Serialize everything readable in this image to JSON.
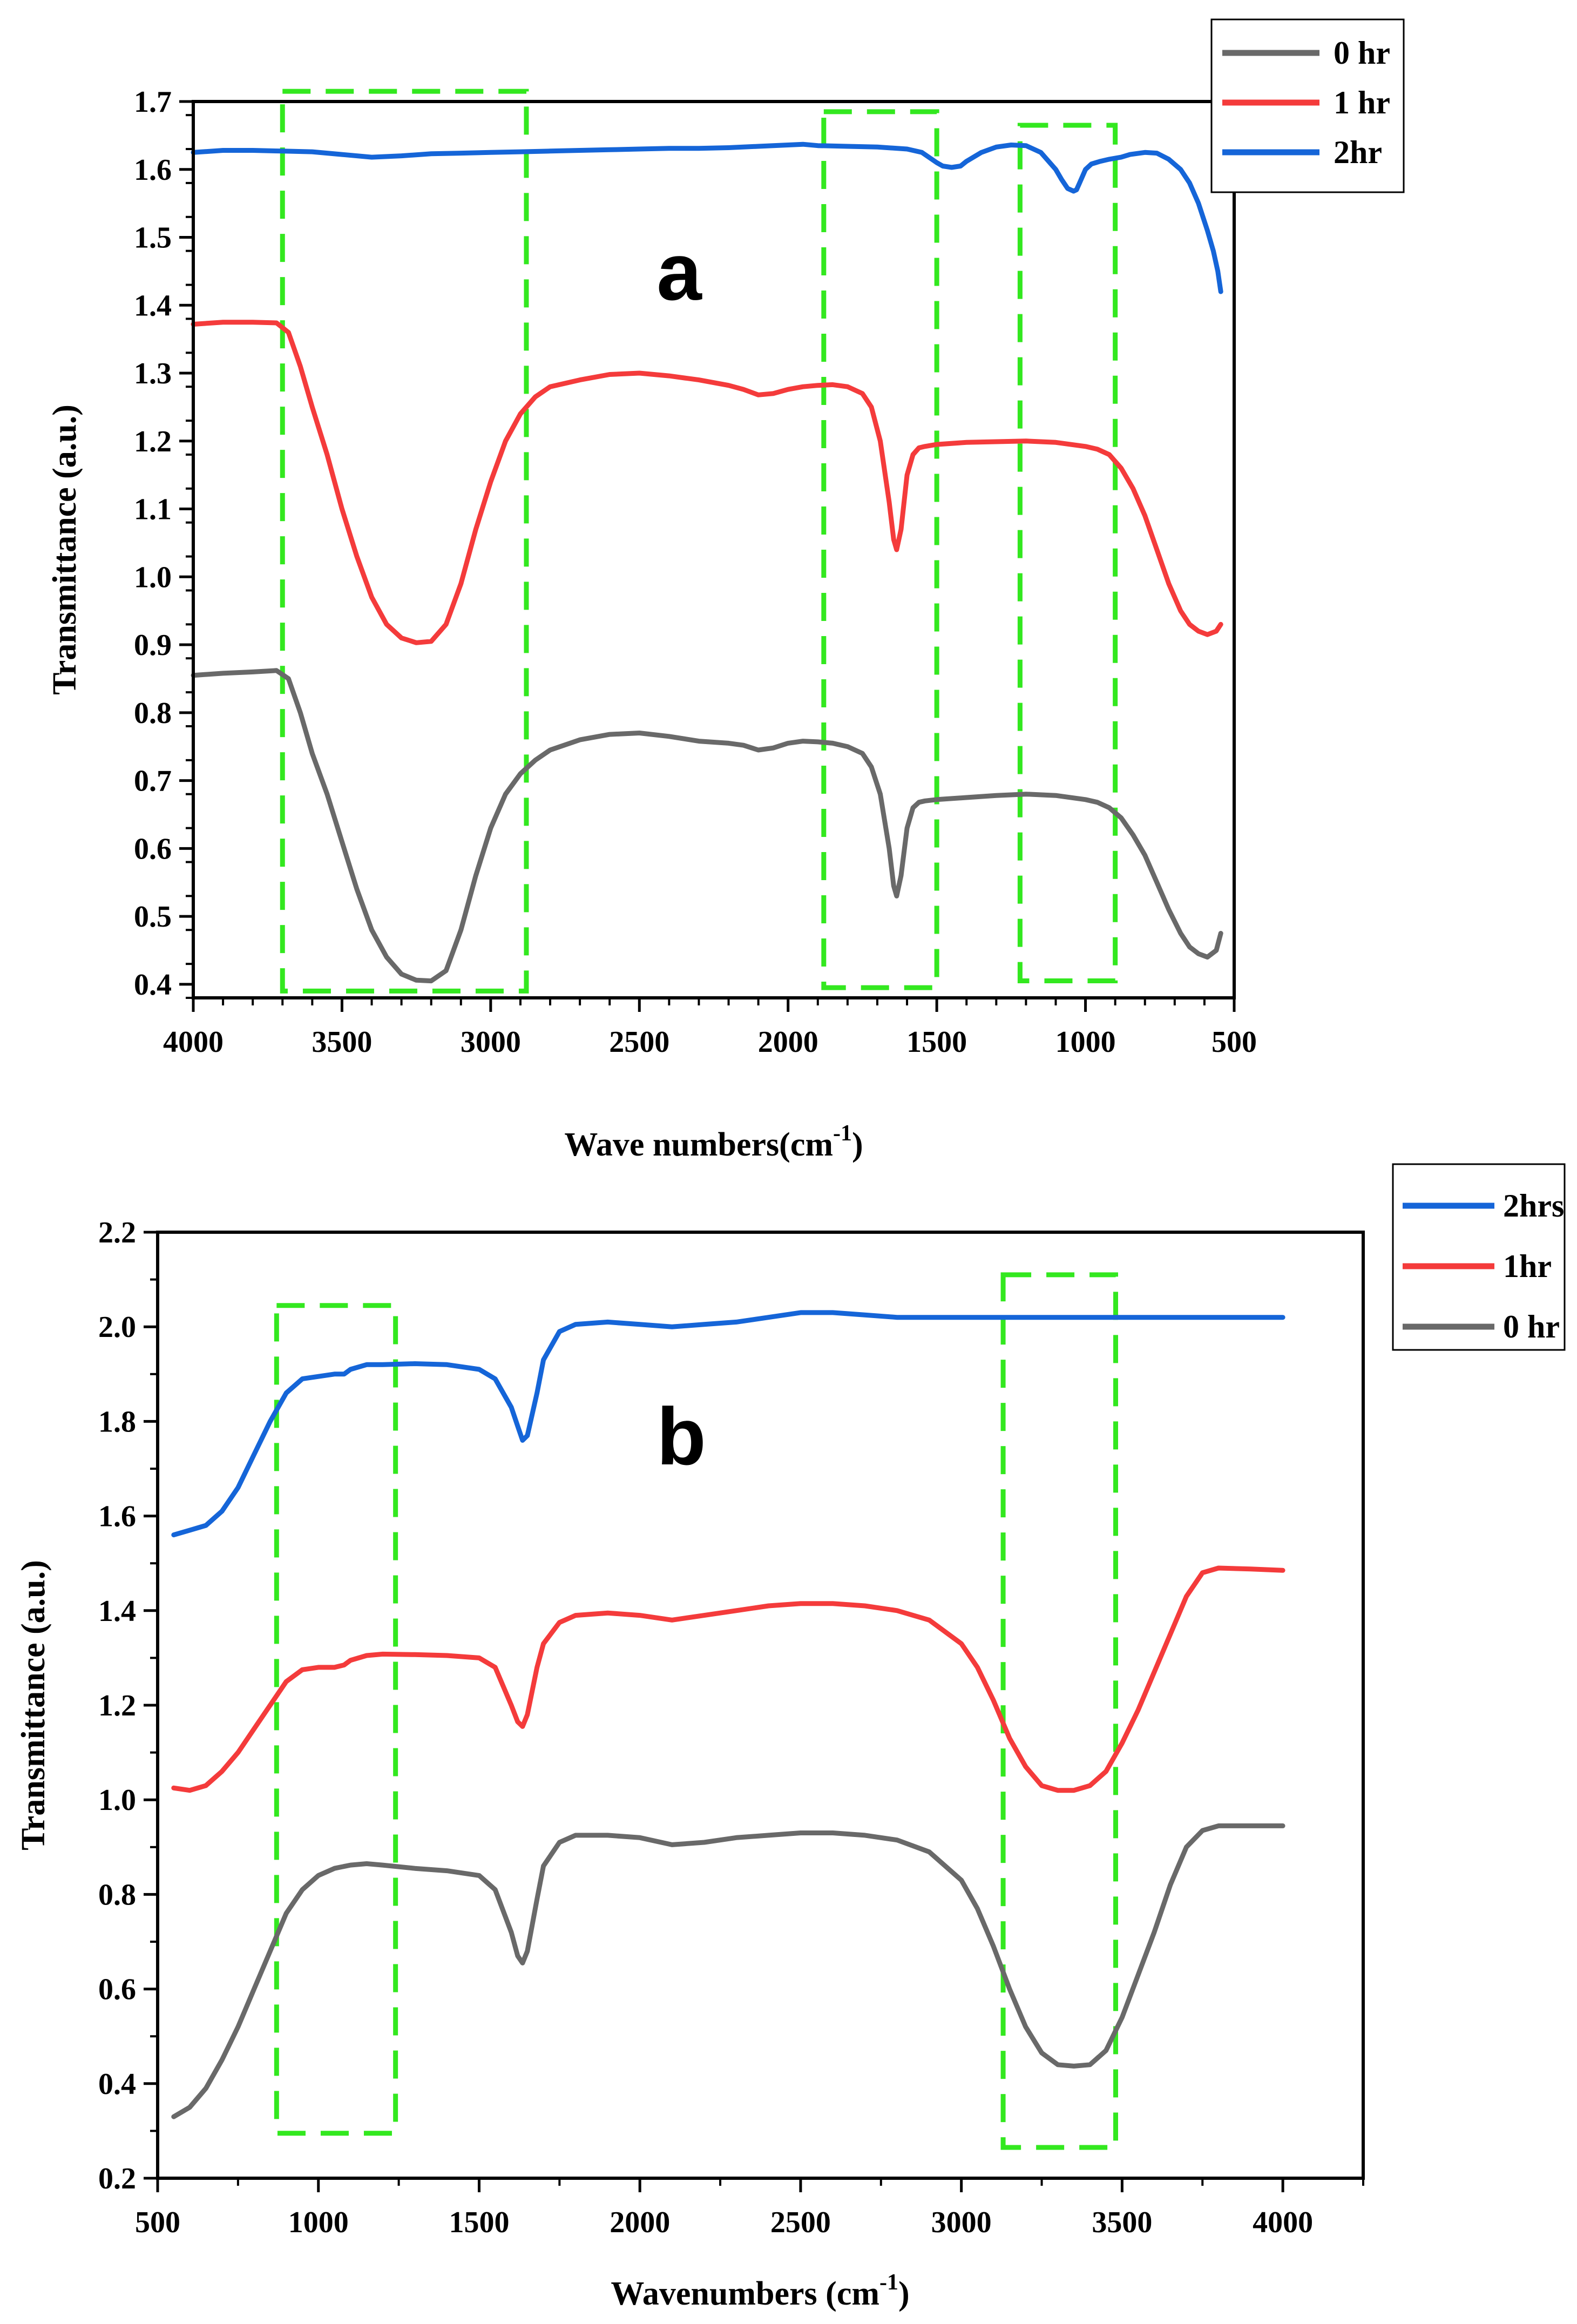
{
  "figure": {
    "panels": [
      {
        "panel_label": "a",
        "xlabel_main": "Wave numbers(cm",
        "xlabel_sup": "-1",
        "xlabel_end": ")",
        "ylabel": "Transmittance (a.u.)",
        "legend": [
          "0 hr",
          "1 hr",
          "2hr"
        ]
      },
      {
        "panel_label": "b",
        "xlabel_main": "Wavenumbers (cm",
        "xlabel_sup": "-1",
        "xlabel_end": ")",
        "ylabel": "Transmittance (a.u.)",
        "legend": [
          "2hrs",
          "1hr",
          "0 hr"
        ]
      }
    ]
  },
  "chart_data": [
    {
      "type": "line",
      "panel": "a",
      "title": "",
      "xlabel": "Wave numbers(cm-1)",
      "ylabel": "Transmittance (a.u.)",
      "xlim": [
        4000,
        500
      ],
      "ylim": [
        0.38,
        1.7
      ],
      "xticks": [
        4000,
        3500,
        3000,
        2500,
        2000,
        1500,
        1000,
        500
      ],
      "xtick_labels": [
        "4000",
        "3500",
        "3000",
        "2500",
        "2000",
        "1500",
        "1000",
        "500"
      ],
      "yticks": [
        0.4,
        0.5,
        0.6,
        0.7,
        0.8,
        0.9,
        1.0,
        1.1,
        1.2,
        1.3,
        1.4,
        1.5,
        1.6,
        1.7
      ],
      "ytick_labels": [
        "0.4",
        "0.5",
        "0.6",
        "0.7",
        "0.8",
        "0.9",
        "1.0",
        "1.1",
        "1.2",
        "1.3",
        "1.4",
        "1.5",
        "1.6",
        "1.7"
      ],
      "series": [
        {
          "name": "0 hr",
          "color": "#696969",
          "x": [
            4000,
            3900,
            3800,
            3720,
            3680,
            3640,
            3600,
            3550,
            3500,
            3450,
            3400,
            3350,
            3300,
            3250,
            3200,
            3150,
            3100,
            3050,
            3000,
            2950,
            2900,
            2850,
            2800,
            2700,
            2600,
            2500,
            2400,
            2300,
            2200,
            2150,
            2100,
            2050,
            2000,
            1950,
            1900,
            1850,
            1800,
            1750,
            1720,
            1690,
            1660,
            1645,
            1635,
            1620,
            1600,
            1580,
            1560,
            1540,
            1500,
            1400,
            1300,
            1200,
            1100,
            1000,
            960,
            920,
            880,
            840,
            800,
            760,
            720,
            680,
            650,
            620,
            590,
            560,
            545
          ],
          "y": [
            0.855,
            0.858,
            0.86,
            0.862,
            0.85,
            0.8,
            0.74,
            0.68,
            0.61,
            0.54,
            0.48,
            0.44,
            0.415,
            0.406,
            0.405,
            0.42,
            0.48,
            0.56,
            0.63,
            0.68,
            0.71,
            0.73,
            0.745,
            0.76,
            0.768,
            0.77,
            0.765,
            0.758,
            0.755,
            0.752,
            0.745,
            0.748,
            0.755,
            0.758,
            0.757,
            0.755,
            0.75,
            0.74,
            0.72,
            0.68,
            0.6,
            0.545,
            0.53,
            0.56,
            0.63,
            0.66,
            0.668,
            0.67,
            0.672,
            0.675,
            0.678,
            0.68,
            0.678,
            0.672,
            0.668,
            0.66,
            0.645,
            0.62,
            0.59,
            0.55,
            0.51,
            0.475,
            0.455,
            0.445,
            0.44,
            0.45,
            0.475
          ]
        },
        {
          "name": "1 hr",
          "color": "#f43b3b",
          "x": [
            4000,
            3900,
            3800,
            3720,
            3680,
            3640,
            3600,
            3550,
            3500,
            3450,
            3400,
            3350,
            3300,
            3250,
            3200,
            3150,
            3100,
            3050,
            3000,
            2950,
            2900,
            2850,
            2800,
            2700,
            2600,
            2500,
            2400,
            2300,
            2200,
            2150,
            2100,
            2050,
            2000,
            1950,
            1900,
            1850,
            1800,
            1750,
            1720,
            1690,
            1660,
            1645,
            1635,
            1620,
            1600,
            1580,
            1560,
            1540,
            1500,
            1400,
            1300,
            1200,
            1100,
            1000,
            960,
            920,
            880,
            840,
            800,
            760,
            720,
            680,
            650,
            620,
            590,
            560,
            545
          ],
          "y": [
            1.372,
            1.375,
            1.375,
            1.374,
            1.36,
            1.31,
            1.25,
            1.18,
            1.1,
            1.03,
            0.97,
            0.93,
            0.91,
            0.903,
            0.905,
            0.93,
            0.99,
            1.07,
            1.14,
            1.2,
            1.24,
            1.265,
            1.28,
            1.29,
            1.298,
            1.3,
            1.296,
            1.29,
            1.282,
            1.276,
            1.268,
            1.27,
            1.276,
            1.28,
            1.282,
            1.283,
            1.28,
            1.27,
            1.25,
            1.2,
            1.11,
            1.055,
            1.04,
            1.07,
            1.15,
            1.18,
            1.19,
            1.192,
            1.195,
            1.198,
            1.199,
            1.2,
            1.198,
            1.192,
            1.188,
            1.18,
            1.16,
            1.13,
            1.09,
            1.04,
            0.99,
            0.95,
            0.93,
            0.92,
            0.915,
            0.92,
            0.93
          ]
        },
        {
          "name": "2hr",
          "color": "#1565d8",
          "x": [
            4000,
            3900,
            3800,
            3700,
            3600,
            3500,
            3400,
            3300,
            3200,
            3100,
            3000,
            2900,
            2800,
            2700,
            2600,
            2500,
            2400,
            2300,
            2200,
            2100,
            2000,
            1950,
            1900,
            1800,
            1700,
            1600,
            1550,
            1500,
            1480,
            1450,
            1420,
            1400,
            1350,
            1300,
            1250,
            1200,
            1150,
            1100,
            1080,
            1060,
            1040,
            1030,
            1020,
            1000,
            980,
            950,
            920,
            880,
            850,
            800,
            760,
            720,
            680,
            650,
            620,
            590,
            570,
            555,
            545
          ],
          "y": [
            1.625,
            1.628,
            1.628,
            1.627,
            1.626,
            1.622,
            1.618,
            1.62,
            1.623,
            1.624,
            1.625,
            1.626,
            1.627,
            1.628,
            1.629,
            1.63,
            1.631,
            1.631,
            1.632,
            1.634,
            1.636,
            1.637,
            1.635,
            1.634,
            1.633,
            1.63,
            1.625,
            1.61,
            1.605,
            1.603,
            1.605,
            1.612,
            1.625,
            1.633,
            1.636,
            1.635,
            1.625,
            1.6,
            1.585,
            1.572,
            1.568,
            1.57,
            1.58,
            1.6,
            1.608,
            1.612,
            1.615,
            1.618,
            1.622,
            1.625,
            1.624,
            1.615,
            1.6,
            1.58,
            1.55,
            1.51,
            1.48,
            1.45,
            1.42
          ]
        }
      ],
      "annotations": [
        "dashed green rectangles around 3700-2880, 1880-1500, 1220-900 cm-1"
      ]
    },
    {
      "type": "line",
      "panel": "b",
      "title": "",
      "xlabel": "Wavenumbers (cm-1)",
      "ylabel": "Transmittance (a.u.)",
      "xlim": [
        500,
        4250
      ],
      "ylim": [
        0.2,
        2.2
      ],
      "xticks": [
        500,
        1000,
        1500,
        2000,
        2500,
        3000,
        3500,
        4000
      ],
      "xtick_labels": [
        "500",
        "1000",
        "1500",
        "2000",
        "2500",
        "3000",
        "3500",
        "4000"
      ],
      "yticks": [
        0.2,
        0.4,
        0.6,
        0.8,
        1.0,
        1.2,
        1.4,
        1.6,
        1.8,
        2.0,
        2.2
      ],
      "ytick_labels": [
        "0.2",
        "0.4",
        "0.6",
        "0.8",
        "1.0",
        "1.2",
        "1.4",
        "1.6",
        "1.8",
        "2.0",
        "2.2"
      ],
      "series": [
        {
          "name": "2hrs",
          "color": "#1565d8",
          "x": [
            550,
            600,
            650,
            700,
            750,
            800,
            850,
            900,
            950,
            1000,
            1050,
            1080,
            1100,
            1150,
            1200,
            1300,
            1400,
            1500,
            1550,
            1600,
            1620,
            1635,
            1650,
            1680,
            1700,
            1750,
            1800,
            1900,
            2000,
            2100,
            2200,
            2300,
            2400,
            2500,
            2600,
            2700,
            2800,
            3000,
            3200,
            3400,
            3600,
            3800,
            4000
          ],
          "y": [
            1.56,
            1.57,
            1.58,
            1.61,
            1.66,
            1.73,
            1.8,
            1.86,
            1.89,
            1.895,
            1.9,
            1.9,
            1.91,
            1.92,
            1.92,
            1.922,
            1.92,
            1.91,
            1.89,
            1.83,
            1.79,
            1.76,
            1.77,
            1.86,
            1.93,
            1.99,
            2.005,
            2.01,
            2.005,
            2.0,
            2.005,
            2.01,
            2.02,
            2.03,
            2.03,
            2.025,
            2.02,
            2.02,
            2.02,
            2.02,
            2.02,
            2.02,
            2.02
          ]
        },
        {
          "name": "1hr",
          "color": "#f43b3b",
          "x": [
            550,
            600,
            650,
            700,
            750,
            800,
            850,
            900,
            950,
            1000,
            1050,
            1080,
            1100,
            1150,
            1200,
            1300,
            1400,
            1500,
            1550,
            1600,
            1620,
            1635,
            1650,
            1680,
            1700,
            1750,
            1800,
            1900,
            2000,
            2100,
            2200,
            2300,
            2400,
            2500,
            2600,
            2700,
            2800,
            2900,
            3000,
            3050,
            3100,
            3150,
            3200,
            3250,
            3300,
            3350,
            3400,
            3450,
            3500,
            3550,
            3600,
            3650,
            3700,
            3750,
            3800,
            3900,
            4000
          ],
          "y": [
            1.025,
            1.02,
            1.03,
            1.06,
            1.1,
            1.15,
            1.2,
            1.25,
            1.275,
            1.28,
            1.28,
            1.285,
            1.295,
            1.305,
            1.308,
            1.307,
            1.305,
            1.3,
            1.28,
            1.2,
            1.165,
            1.155,
            1.18,
            1.28,
            1.33,
            1.375,
            1.39,
            1.395,
            1.39,
            1.38,
            1.39,
            1.4,
            1.41,
            1.415,
            1.415,
            1.41,
            1.4,
            1.38,
            1.33,
            1.28,
            1.21,
            1.13,
            1.07,
            1.03,
            1.02,
            1.02,
            1.03,
            1.06,
            1.12,
            1.19,
            1.27,
            1.35,
            1.43,
            1.48,
            1.49,
            1.488,
            1.485
          ]
        },
        {
          "name": "0 hr",
          "color": "#696969",
          "x": [
            550,
            600,
            650,
            700,
            750,
            800,
            850,
            900,
            950,
            1000,
            1050,
            1100,
            1150,
            1200,
            1300,
            1400,
            1500,
            1550,
            1600,
            1620,
            1635,
            1650,
            1680,
            1700,
            1750,
            1800,
            1900,
            2000,
            2100,
            2200,
            2300,
            2400,
            2500,
            2600,
            2700,
            2800,
            2900,
            3000,
            3050,
            3100,
            3150,
            3200,
            3250,
            3300,
            3350,
            3400,
            3450,
            3500,
            3550,
            3600,
            3650,
            3700,
            3750,
            3800,
            3900,
            4000
          ],
          "y": [
            0.33,
            0.35,
            0.39,
            0.45,
            0.52,
            0.6,
            0.68,
            0.76,
            0.81,
            0.84,
            0.855,
            0.862,
            0.865,
            0.862,
            0.855,
            0.85,
            0.84,
            0.81,
            0.72,
            0.67,
            0.655,
            0.68,
            0.79,
            0.86,
            0.91,
            0.925,
            0.925,
            0.92,
            0.905,
            0.91,
            0.92,
            0.925,
            0.93,
            0.93,
            0.925,
            0.915,
            0.89,
            0.83,
            0.77,
            0.69,
            0.6,
            0.52,
            0.465,
            0.44,
            0.437,
            0.44,
            0.47,
            0.54,
            0.63,
            0.72,
            0.82,
            0.9,
            0.935,
            0.945,
            0.945,
            0.945
          ]
        }
      ],
      "annotations": [
        "dashed green rectangles around 870-1240 and 3130-3480 cm-1"
      ]
    }
  ]
}
